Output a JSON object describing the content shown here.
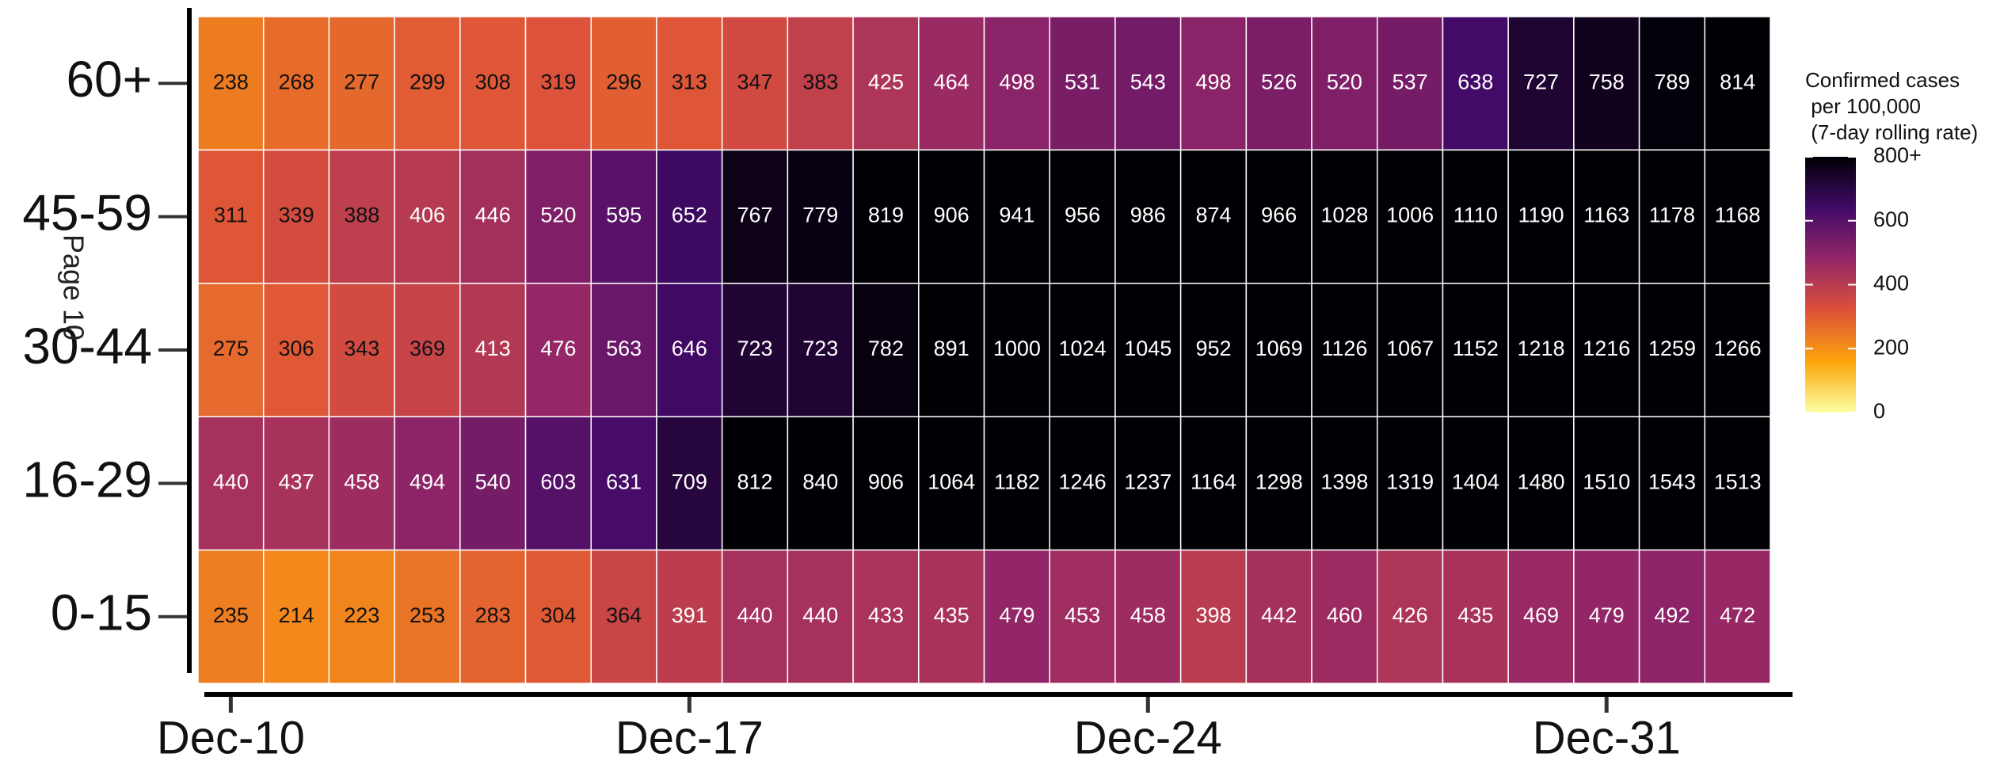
{
  "chart_data": {
    "type": "heatmap",
    "annotation": "Page 10",
    "legend_title": [
      "Confirmed cases",
      " per 100,000",
      " (7-day rolling rate)"
    ],
    "categories": [
      "Dec-10",
      null,
      null,
      null,
      null,
      null,
      null,
      "Dec-17",
      null,
      null,
      null,
      null,
      null,
      null,
      "Dec-24",
      null,
      null,
      null,
      null,
      null,
      null,
      "Dec-31",
      null,
      null
    ],
    "y_categories": [
      "60+",
      "45-59",
      "30-44",
      "16-29",
      "0-15"
    ],
    "series": [
      {
        "name": "60+",
        "values": [
          238,
          268,
          277,
          299,
          308,
          319,
          296,
          313,
          347,
          383,
          425,
          464,
          498,
          531,
          543,
          498,
          526,
          520,
          537,
          638,
          727,
          758,
          789,
          814
        ]
      },
      {
        "name": "45-59",
        "values": [
          311,
          339,
          388,
          406,
          446,
          520,
          595,
          652,
          767,
          779,
          819,
          906,
          941,
          956,
          986,
          874,
          966,
          1028,
          1006,
          1110,
          1190,
          1163,
          1178,
          1168
        ]
      },
      {
        "name": "30-44",
        "values": [
          275,
          306,
          343,
          369,
          413,
          476,
          563,
          646,
          723,
          723,
          782,
          891,
          1000,
          1024,
          1045,
          952,
          1069,
          1126,
          1067,
          1152,
          1218,
          1216,
          1259,
          1266
        ]
      },
      {
        "name": "16-29",
        "values": [
          440,
          437,
          458,
          494,
          540,
          603,
          631,
          709,
          812,
          840,
          906,
          1064,
          1182,
          1246,
          1237,
          1164,
          1298,
          1398,
          1319,
          1404,
          1480,
          1510,
          1543,
          1513
        ]
      },
      {
        "name": "0-15",
        "values": [
          235,
          214,
          223,
          253,
          283,
          304,
          364,
          391,
          440,
          440,
          433,
          435,
          479,
          453,
          458,
          398,
          442,
          460,
          426,
          435,
          469,
          479,
          492,
          472
        ]
      }
    ],
    "clim": [
      0,
      800
    ],
    "cticks": [
      0,
      200,
      400,
      600,
      {
        "value": 800,
        "label": "800+"
      }
    ],
    "colors": [
      "#fcffa4",
      "#fca50a",
      "#dd513a",
      "#932667",
      "#420a68",
      "#000004"
    ]
  }
}
